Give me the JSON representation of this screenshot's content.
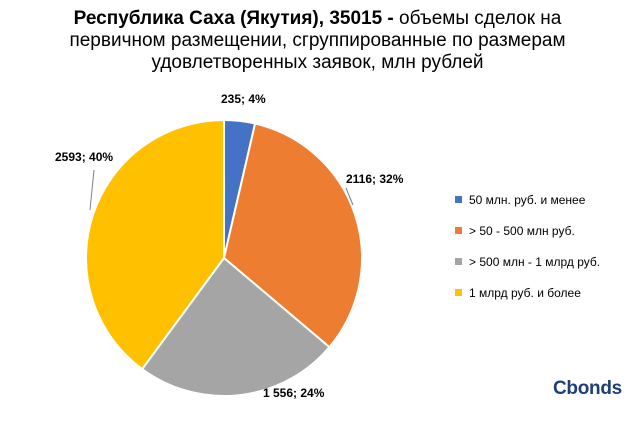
{
  "title": {
    "bold": "Республика Саха (Якутия), 35015 -",
    "line1_rest": " объемы сделок на",
    "line2": "первичном размещении, сгруппированные по размерам",
    "line3": "удовлетворенных заявок, млн рублей"
  },
  "chart_data": {
    "type": "pie",
    "categories": [
      "50 млн. руб. и менее",
      "> 50 - 500 млн руб.",
      "> 500 млн - 1 млрд руб.",
      "1 млрд руб. и более"
    ],
    "values": [
      235,
      2116,
      1556,
      2593
    ],
    "percents": [
      4,
      32,
      24,
      40
    ],
    "data_labels": [
      "235; 4%",
      "2116; 32%",
      "1 556; 24%",
      "2593; 40%"
    ],
    "colors": [
      "#4472c4",
      "#ed7d31",
      "#a5a5a5",
      "#ffc000"
    ],
    "legend_position": "right"
  },
  "logo": "Cbonds"
}
